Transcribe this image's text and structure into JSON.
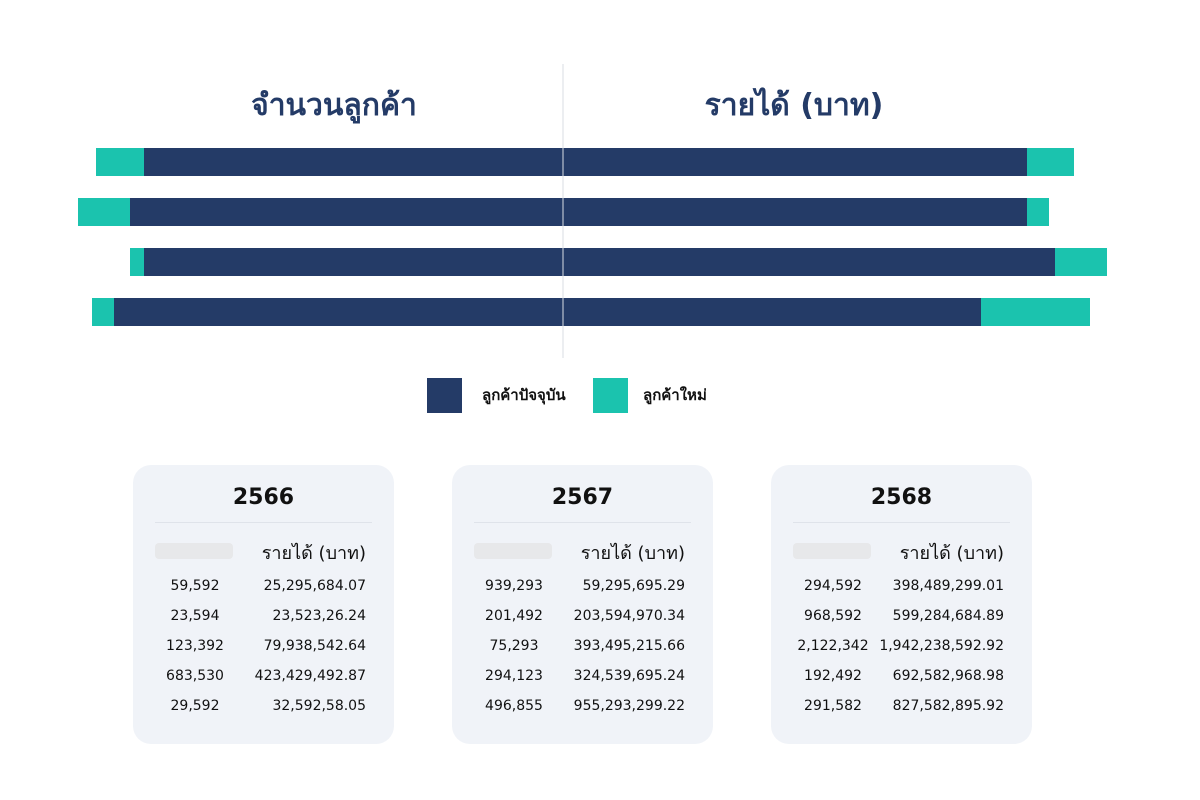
{
  "chart_data": {
    "type": "bar",
    "orientation": "horizontal-butterfly",
    "panels": [
      {
        "title": "จำนวนลูกค้า"
      },
      {
        "title": "รายได้ (บาท)"
      }
    ],
    "series": [
      {
        "name": "ลูกค้าปัจจุบัน",
        "color": "#243b67"
      },
      {
        "name": "ลูกค้าใหม่",
        "color": "#1bc3ae"
      }
    ],
    "rows": [
      {
        "left_existing": 419,
        "left_new": 48,
        "right_existing": 464,
        "right_new": 47
      },
      {
        "left_existing": 433,
        "left_new": 52,
        "right_existing": 464,
        "right_new": 22
      },
      {
        "left_existing": 419,
        "left_new": 14,
        "right_existing": 492,
        "right_new": 52
      },
      {
        "left_existing": 449,
        "left_new": 22,
        "right_existing": 418,
        "right_new": 109
      }
    ],
    "legend_position": "bottom-center",
    "grid": false
  },
  "cards": [
    {
      "year": "2566",
      "revenue_header": "รายได้ (บาท)",
      "rows": [
        {
          "customers": "59,592",
          "revenue": "25,295,684.07"
        },
        {
          "customers": "23,594",
          "revenue": "23,523,26.24"
        },
        {
          "customers": "123,392",
          "revenue": "79,938,542.64"
        },
        {
          "customers": "683,530",
          "revenue": "423,429,492.87"
        },
        {
          "customers": "29,592",
          "revenue": "32,592,58.05"
        }
      ]
    },
    {
      "year": "2567",
      "revenue_header": "รายได้ (บาท)",
      "rows": [
        {
          "customers": "939,293",
          "revenue": "59,295,695.29"
        },
        {
          "customers": "201,492",
          "revenue": "203,594,970.34"
        },
        {
          "customers": "75,293",
          "revenue": "393,495,215.66"
        },
        {
          "customers": "294,123",
          "revenue": "324,539,695.24"
        },
        {
          "customers": "496,855",
          "revenue": "955,293,299.22"
        }
      ]
    },
    {
      "year": "2568",
      "revenue_header": "รายได้ (บาท)",
      "rows": [
        {
          "customers": "294,592",
          "revenue": "398,489,299.01"
        },
        {
          "customers": "968,592",
          "revenue": "599,284,684.89"
        },
        {
          "customers": "2,122,342",
          "revenue": "1,942,238,592.92"
        },
        {
          "customers": "192,492",
          "revenue": "692,582,968.98"
        },
        {
          "customers": "291,582",
          "revenue": "827,582,895.92"
        }
      ]
    }
  ]
}
